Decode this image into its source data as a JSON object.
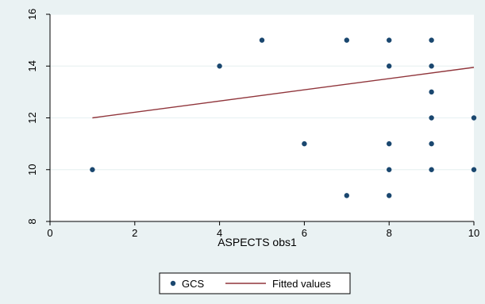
{
  "chart_data": {
    "type": "scatter",
    "xlabel": "ASPECTS obs1",
    "ylabel": "",
    "xlim": [
      0,
      10
    ],
    "ylim": [
      8,
      16
    ],
    "xticks": [
      0,
      2,
      4,
      6,
      8,
      10
    ],
    "yticks": [
      8,
      10,
      12,
      14,
      16
    ],
    "grid": "horizontal",
    "legend_position": "bottom",
    "series": [
      {
        "name": "GCS",
        "kind": "scatter",
        "color": "#1a476f",
        "points": [
          [
            1,
            10
          ],
          [
            4,
            14
          ],
          [
            5,
            15
          ],
          [
            6,
            11
          ],
          [
            7,
            15
          ],
          [
            7,
            9
          ],
          [
            8,
            15
          ],
          [
            8,
            14
          ],
          [
            8,
            11
          ],
          [
            8,
            10
          ],
          [
            8,
            9
          ],
          [
            9,
            15
          ],
          [
            9,
            14
          ],
          [
            9,
            13
          ],
          [
            9,
            12
          ],
          [
            9,
            11
          ],
          [
            9,
            10
          ],
          [
            10,
            12
          ],
          [
            10,
            10
          ]
        ]
      },
      {
        "name": "Fitted values",
        "kind": "line",
        "color": "#90353b",
        "points": [
          [
            1,
            12.0
          ],
          [
            10,
            13.95
          ]
        ]
      }
    ],
    "colors": {
      "outer_background": "#eaf2f3",
      "plot_background": "#ffffff",
      "grid": "#eaf2f3"
    }
  }
}
